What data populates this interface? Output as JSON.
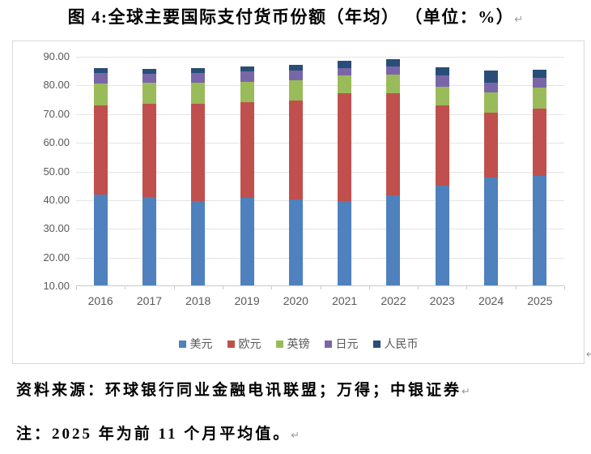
{
  "title": {
    "text": "图 4:全球主要国际支付货币份额（年均） （单位：%）"
  },
  "marks": {
    "paragraph_mark": "↵"
  },
  "chart_data": {
    "type": "bar",
    "stacked": true,
    "categories": [
      "2016",
      "2017",
      "2018",
      "2019",
      "2020",
      "2021",
      "2022",
      "2023",
      "2024",
      "2025"
    ],
    "series": [
      {
        "name": "美元",
        "color": "#4E81BD",
        "values": [
          41.6,
          40.7,
          39.5,
          40.5,
          40.0,
          39.3,
          41.5,
          44.6,
          47.7,
          48.3
        ]
      },
      {
        "name": "欧元",
        "color": "#C0504D",
        "values": [
          31.1,
          32.6,
          33.8,
          33.5,
          34.5,
          37.7,
          35.5,
          28.1,
          22.6,
          23.4
        ]
      },
      {
        "name": "英镑",
        "color": "#9ABB59",
        "values": [
          7.7,
          7.3,
          7.3,
          6.9,
          7.1,
          6.1,
          6.5,
          6.6,
          7.0,
          7.2
        ]
      },
      {
        "name": "日元",
        "color": "#7966A8",
        "values": [
          3.6,
          3.3,
          3.5,
          3.6,
          3.2,
          2.6,
          2.8,
          3.8,
          3.3,
          3.4
        ]
      },
      {
        "name": "人民币",
        "color": "#284E78",
        "values": [
          1.8,
          1.7,
          1.8,
          1.9,
          2.1,
          2.5,
          2.6,
          3.0,
          4.4,
          3.0
        ]
      }
    ],
    "ylim": [
      10,
      90
    ],
    "ytick_step": 10,
    "ytick_labels": [
      "90.00",
      "80.00",
      "70.00",
      "60.00",
      "50.00",
      "40.00",
      "30.00",
      "20.00",
      "10.00"
    ],
    "grid": true,
    "legend_position": "bottom"
  },
  "footer": {
    "source": "资料来源：环球银行同业金融电讯联盟；万得；中银证券",
    "note": "注：2025 年为前 11 个月平均值。"
  },
  "style_colors": {
    "grid": "#E4E4E4",
    "axis": "#C9C9C9",
    "axis_text": "#595959",
    "frame_border": "#D8D8D8"
  }
}
